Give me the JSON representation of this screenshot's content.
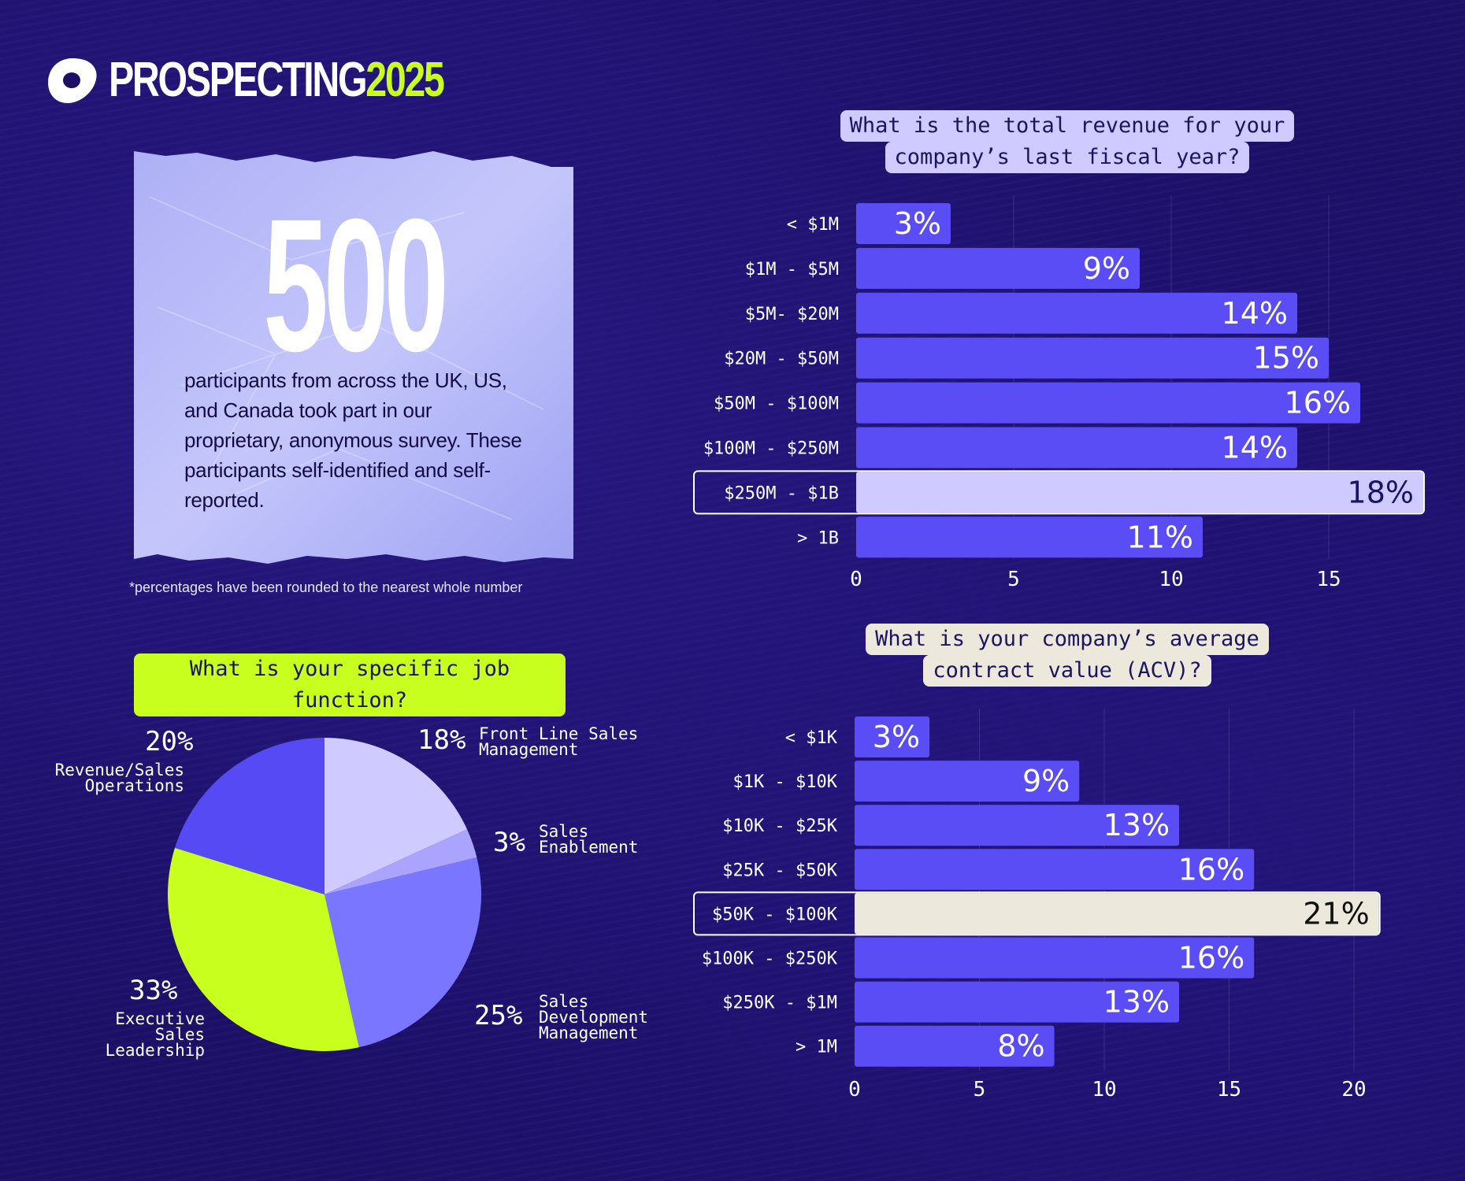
{
  "header": {
    "brand": "PROSPECTING",
    "year": "2025",
    "logo_icon": "outreach-logo-icon"
  },
  "intro": {
    "number": "500",
    "text": "participants from across the UK, US, and Canada took part in our proprietary, anonymous survey. These participants self-identified and self-reported.",
    "footnote": "*percentages have been rounded to the nearest whole number"
  },
  "colors": {
    "background": "#1b0f66",
    "bar": "#5a4df5",
    "highlight_revenue": "#cfcaff",
    "highlight_acv": "#ece8dc",
    "accent": "#c8ff1e"
  },
  "chart_data": [
    {
      "type": "bar",
      "orientation": "horizontal",
      "title": [
        "What is the total revenue for your",
        "company’s last fiscal year?"
      ],
      "categories": [
        "< $1M",
        "$1M - $5M",
        "$5M- $20M",
        "$20M - $50M",
        "$50M - $100M",
        "$100M - $250M",
        "$250M - $1B",
        "> 1B"
      ],
      "values": [
        3,
        9,
        14,
        15,
        16,
        14,
        18,
        11
      ],
      "value_labels": [
        "3%",
        "9%",
        "14%",
        "15%",
        "16%",
        "14%",
        "18%",
        "11%"
      ],
      "highlight": "$250M - $1B",
      "xticks": [
        "0",
        "5",
        "10",
        "15"
      ],
      "xlim": [
        0,
        17.8
      ]
    },
    {
      "type": "bar",
      "orientation": "horizontal",
      "title": [
        "What is your company’s average",
        "contract value (ACV)?"
      ],
      "categories": [
        "< $1K",
        "$1K - $10K",
        "$10K - $25K",
        "$25K - $50K",
        "$50K - $100K",
        "$100K - $250K",
        "$250K - $1M",
        "> 1M"
      ],
      "values": [
        3,
        9,
        13,
        16,
        21,
        16,
        13,
        8
      ],
      "value_labels": [
        "3%",
        "9%",
        "13%",
        "16%",
        "21%",
        "16%",
        "13%",
        "8%"
      ],
      "highlight": "$50K - $100K",
      "xticks": [
        "0",
        "5",
        "10",
        "15",
        "20"
      ],
      "xlim": [
        0,
        20
      ]
    },
    {
      "type": "pie",
      "title": "What is your specific job function?",
      "slices": [
        {
          "label": [
            "Front Line Sales",
            "Management"
          ],
          "value": 18,
          "pct": "18%",
          "color": "#cfcaff"
        },
        {
          "label": [
            "Sales",
            "Enablement"
          ],
          "value": 3,
          "pct": "3%",
          "color": "#aaa4ff"
        },
        {
          "label": [
            "Sales",
            "Development",
            "Management"
          ],
          "value": 25,
          "pct": "25%",
          "color": "#7a76ff"
        },
        {
          "label": [
            "Executive",
            "Sales",
            "Leadership"
          ],
          "value": 33,
          "pct": "33%",
          "color": "#c8ff1e"
        },
        {
          "label": [
            "Revenue/Sales",
            "Operations"
          ],
          "value": 20,
          "pct": "20%",
          "color": "#564af5"
        }
      ]
    }
  ]
}
